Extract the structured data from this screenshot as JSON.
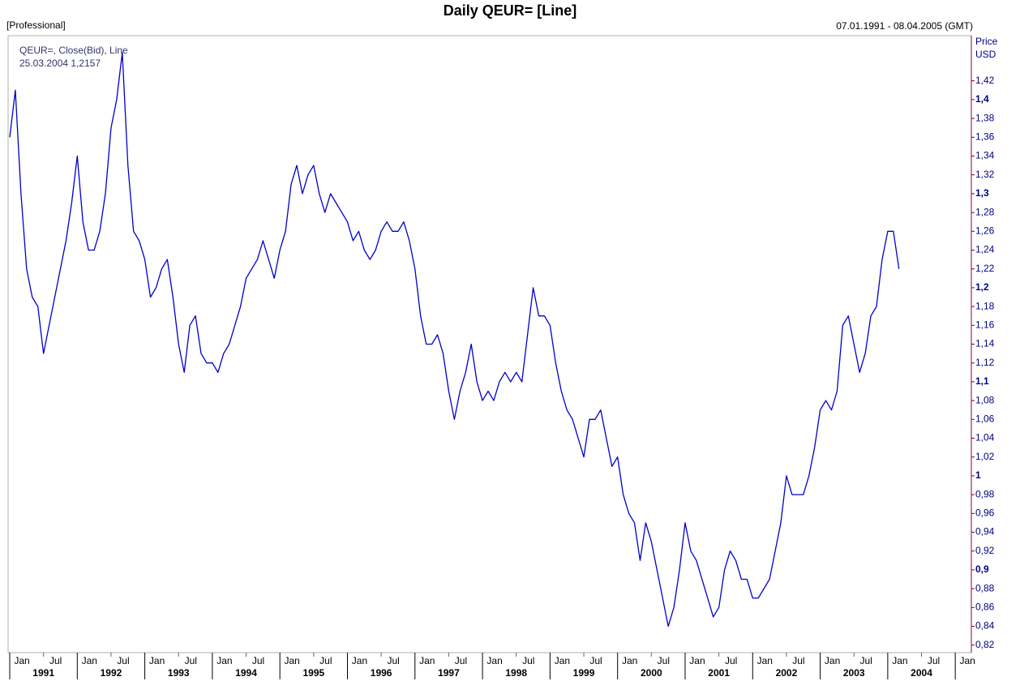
{
  "chart_data": {
    "type": "line",
    "title": "Daily QEUR= [Line]",
    "subtitle": "[Professional]",
    "date_range": "07.01.1991 - 08.04.2005 (GMT)",
    "y_axis_label": "Price",
    "y_axis_unit": "USD",
    "last_value_label": "25.03.2004 1,2157",
    "x": [
      "1991-01",
      "1991-02",
      "1991-03",
      "1991-04",
      "1991-05",
      "1991-06",
      "1991-07",
      "1991-08",
      "1991-09",
      "1991-10",
      "1991-11",
      "1991-12",
      "1992-01",
      "1992-02",
      "1992-03",
      "1992-04",
      "1992-05",
      "1992-06",
      "1992-07",
      "1992-08",
      "1992-09",
      "1992-10",
      "1992-11",
      "1992-12",
      "1993-01",
      "1993-02",
      "1993-03",
      "1993-04",
      "1993-05",
      "1993-06",
      "1993-07",
      "1993-08",
      "1993-09",
      "1993-10",
      "1993-11",
      "1993-12",
      "1994-01",
      "1994-02",
      "1994-03",
      "1994-04",
      "1994-05",
      "1994-06",
      "1994-07",
      "1994-08",
      "1994-09",
      "1994-10",
      "1994-11",
      "1994-12",
      "1995-01",
      "1995-02",
      "1995-03",
      "1995-04",
      "1995-05",
      "1995-06",
      "1995-07",
      "1995-08",
      "1995-09",
      "1995-10",
      "1995-11",
      "1995-12",
      "1996-01",
      "1996-02",
      "1996-03",
      "1996-04",
      "1996-05",
      "1996-06",
      "1996-07",
      "1996-08",
      "1996-09",
      "1996-10",
      "1996-11",
      "1996-12",
      "1997-01",
      "1997-02",
      "1997-03",
      "1997-04",
      "1997-05",
      "1997-06",
      "1997-07",
      "1997-08",
      "1997-09",
      "1997-10",
      "1997-11",
      "1997-12",
      "1998-01",
      "1998-02",
      "1998-03",
      "1998-04",
      "1998-05",
      "1998-06",
      "1998-07",
      "1998-08",
      "1998-09",
      "1998-10",
      "1998-11",
      "1998-12",
      "1999-01",
      "1999-02",
      "1999-03",
      "1999-04",
      "1999-05",
      "1999-06",
      "1999-07",
      "1999-08",
      "1999-09",
      "1999-10",
      "1999-11",
      "1999-12",
      "2000-01",
      "2000-02",
      "2000-03",
      "2000-04",
      "2000-05",
      "2000-06",
      "2000-07",
      "2000-08",
      "2000-09",
      "2000-10",
      "2000-11",
      "2000-12",
      "2001-01",
      "2001-02",
      "2001-03",
      "2001-04",
      "2001-05",
      "2001-06",
      "2001-07",
      "2001-08",
      "2001-09",
      "2001-10",
      "2001-11",
      "2001-12",
      "2002-01",
      "2002-02",
      "2002-03",
      "2002-04",
      "2002-05",
      "2002-06",
      "2002-07",
      "2002-08",
      "2002-09",
      "2002-10",
      "2002-11",
      "2002-12",
      "2003-01",
      "2003-02",
      "2003-03",
      "2003-04",
      "2003-05",
      "2003-06",
      "2003-07",
      "2003-08",
      "2003-09",
      "2003-10",
      "2003-11",
      "2003-12",
      "2004-01",
      "2004-02",
      "2004-03"
    ],
    "series": [
      {
        "name": "QEUR=, Close(Bid), Line",
        "color": "#0000cc",
        "values": [
          1.36,
          1.41,
          1.3,
          1.22,
          1.19,
          1.18,
          1.13,
          1.16,
          1.19,
          1.22,
          1.25,
          1.29,
          1.34,
          1.27,
          1.24,
          1.24,
          1.26,
          1.3,
          1.37,
          1.4,
          1.45,
          1.33,
          1.26,
          1.25,
          1.23,
          1.19,
          1.2,
          1.22,
          1.23,
          1.19,
          1.14,
          1.11,
          1.16,
          1.17,
          1.13,
          1.12,
          1.12,
          1.11,
          1.13,
          1.14,
          1.16,
          1.18,
          1.21,
          1.22,
          1.23,
          1.25,
          1.23,
          1.21,
          1.24,
          1.26,
          1.31,
          1.33,
          1.3,
          1.32,
          1.33,
          1.3,
          1.28,
          1.3,
          1.29,
          1.28,
          1.27,
          1.25,
          1.26,
          1.24,
          1.23,
          1.24,
          1.26,
          1.27,
          1.26,
          1.26,
          1.27,
          1.25,
          1.22,
          1.17,
          1.14,
          1.14,
          1.15,
          1.13,
          1.09,
          1.06,
          1.09,
          1.11,
          1.14,
          1.1,
          1.08,
          1.09,
          1.08,
          1.1,
          1.11,
          1.1,
          1.11,
          1.1,
          1.15,
          1.2,
          1.17,
          1.17,
          1.16,
          1.12,
          1.09,
          1.07,
          1.06,
          1.04,
          1.02,
          1.06,
          1.06,
          1.07,
          1.04,
          1.01,
          1.02,
          0.98,
          0.96,
          0.95,
          0.91,
          0.95,
          0.93,
          0.9,
          0.87,
          0.84,
          0.86,
          0.9,
          0.95,
          0.92,
          0.91,
          0.89,
          0.87,
          0.85,
          0.86,
          0.9,
          0.92,
          0.91,
          0.89,
          0.89,
          0.87,
          0.87,
          0.88,
          0.89,
          0.92,
          0.95,
          1.0,
          0.98,
          0.98,
          0.98,
          1.0,
          1.03,
          1.07,
          1.08,
          1.07,
          1.09,
          1.16,
          1.17,
          1.14,
          1.11,
          1.13,
          1.17,
          1.18,
          1.23,
          1.26,
          1.26,
          1.22
        ]
      }
    ],
    "xlim": [
      "1991-01",
      "2005-04"
    ],
    "xticks": [
      {
        "value": "1991-01",
        "label": "Jan"
      },
      {
        "value": "1991-07",
        "label": "Jul"
      },
      {
        "value": "1992-01",
        "label": "Jan"
      },
      {
        "value": "1992-07",
        "label": "Jul"
      },
      {
        "value": "1993-01",
        "label": "Jan"
      },
      {
        "value": "1993-07",
        "label": "Jul"
      },
      {
        "value": "1994-01",
        "label": "Jan"
      },
      {
        "value": "1994-07",
        "label": "Jul"
      },
      {
        "value": "1995-01",
        "label": "Jan"
      },
      {
        "value": "1995-07",
        "label": "Jul"
      },
      {
        "value": "1996-01",
        "label": "Jan"
      },
      {
        "value": "1996-07",
        "label": "Jul"
      },
      {
        "value": "1997-01",
        "label": "Jan"
      },
      {
        "value": "1997-07",
        "label": "Jul"
      },
      {
        "value": "1998-01",
        "label": "Jan"
      },
      {
        "value": "1998-07",
        "label": "Jul"
      },
      {
        "value": "1999-01",
        "label": "Jan"
      },
      {
        "value": "1999-07",
        "label": "Jul"
      },
      {
        "value": "2000-01",
        "label": "Jan"
      },
      {
        "value": "2000-07",
        "label": "Jul"
      },
      {
        "value": "2001-01",
        "label": "Jan"
      },
      {
        "value": "2001-07",
        "label": "Jul"
      },
      {
        "value": "2002-01",
        "label": "Jan"
      },
      {
        "value": "2002-07",
        "label": "Jul"
      },
      {
        "value": "2003-01",
        "label": "Jan"
      },
      {
        "value": "2003-07",
        "label": "Jul"
      },
      {
        "value": "2004-01",
        "label": "Jan"
      },
      {
        "value": "2004-07",
        "label": "Jul"
      },
      {
        "value": "2005-01",
        "label": "Jan"
      }
    ],
    "year_labels": [
      1991,
      1992,
      1993,
      1994,
      1995,
      1996,
      1997,
      1998,
      1999,
      2000,
      2001,
      2002,
      2003,
      2004
    ],
    "ylim": [
      0.812,
      1.468
    ],
    "yticks": [
      {
        "value": 0.82,
        "label": "0,82"
      },
      {
        "value": 0.84,
        "label": "0,84"
      },
      {
        "value": 0.86,
        "label": "0,86"
      },
      {
        "value": 0.88,
        "label": "0,88"
      },
      {
        "value": 0.9,
        "label": "0,9"
      },
      {
        "value": 0.92,
        "label": "0,92"
      },
      {
        "value": 0.94,
        "label": "0,94"
      },
      {
        "value": 0.96,
        "label": "0,96"
      },
      {
        "value": 0.98,
        "label": "0,98"
      },
      1,
      {
        "value": 1.02,
        "label": "1,02"
      },
      {
        "value": 1.04,
        "label": "1,04"
      },
      {
        "value": 1.06,
        "label": "1,06"
      },
      {
        "value": 1.08,
        "label": "1,08"
      },
      {
        "value": 1.1,
        "label": "1,1"
      },
      {
        "value": 1.12,
        "label": "1,12"
      },
      {
        "value": 1.14,
        "label": "1,14"
      },
      {
        "value": 1.16,
        "label": "1,16"
      },
      {
        "value": 1.18,
        "label": "1,18"
      },
      {
        "value": 1.2,
        "label": "1,2"
      },
      {
        "value": 1.22,
        "label": "1,22"
      },
      {
        "value": 1.24,
        "label": "1,24"
      },
      {
        "value": 1.26,
        "label": "1,26"
      },
      {
        "value": 1.28,
        "label": "1,28"
      },
      {
        "value": 1.3,
        "label": "1,3"
      },
      {
        "value": 1.32,
        "label": "1,32"
      },
      {
        "value": 1.34,
        "label": "1,34"
      },
      {
        "value": 1.36,
        "label": "1,36"
      },
      {
        "value": 1.38,
        "label": "1,38"
      },
      {
        "value": 1.4,
        "label": "1,4"
      },
      {
        "value": 1.42,
        "label": "1,42"
      }
    ],
    "grid": false,
    "axis_color": "#800040"
  }
}
